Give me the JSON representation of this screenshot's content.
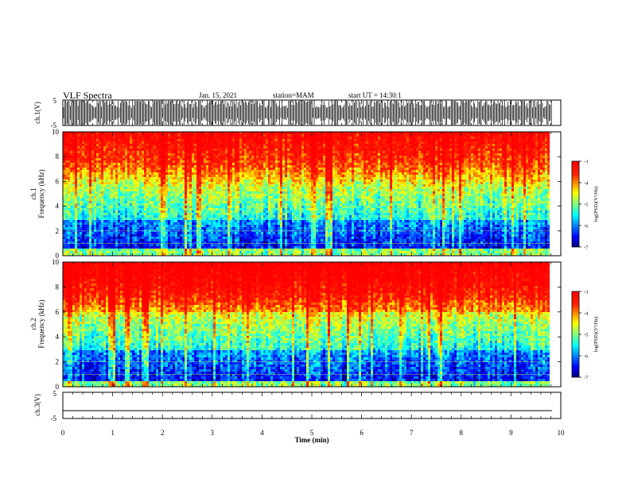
{
  "header": {
    "title": "VLF Spectra",
    "date": "Jan. 15, 2021",
    "station": "station=MAM",
    "start_ut": "start  UT =   14:30:1"
  },
  "chart_data": [
    {
      "type": "line",
      "panel": "ch1-waveform",
      "ylabel": "ch.1(V)",
      "ylim": [
        -5,
        5
      ],
      "yticks": [
        "5",
        "-5"
      ],
      "description_values": {
        "amplitude_v": 5
      }
    },
    {
      "type": "heatmap",
      "panel": "ch1-spectrogram",
      "ylabel_line1": "ch.1",
      "ylabel_line2": "Frequency (kHz)",
      "ylim": [
        0,
        10
      ],
      "yticks": [
        "0",
        "2",
        "4",
        "6",
        "8",
        "10"
      ],
      "colorbar": {
        "label": "log(PSD)(V²/Hz)",
        "range": [
          -7,
          -3
        ],
        "ticks": [
          "-3",
          "-4",
          "-5",
          "-6",
          "-7"
        ],
        "colors": [
          "#00007f",
          "#0000ff",
          "#007fff",
          "#00ffff",
          "#7fff7f",
          "#ffff00",
          "#ff7f00",
          "#ff0000",
          "#7f0000"
        ]
      }
    },
    {
      "type": "heatmap",
      "panel": "ch2-spectrogram",
      "ylabel_line1": "ch.2",
      "ylabel_line2": "Frequency (kHz)",
      "ylim": [
        0,
        10
      ],
      "yticks": [
        "0",
        "2",
        "4",
        "6",
        "8",
        "10"
      ],
      "colorbar": {
        "label": "log(PSD)(V²/Hz)",
        "range": [
          -7,
          -3
        ],
        "ticks": [
          "-3",
          "-4",
          "-5",
          "-6",
          "-7"
        ]
      }
    },
    {
      "type": "line",
      "panel": "ch3-waveform",
      "ylabel": "ch.3(V)",
      "ylim": [
        -5,
        5
      ],
      "yticks": [
        "5",
        "-5"
      ],
      "flat_value": -2
    }
  ],
  "xaxis": {
    "label": "Time (min)",
    "range": [
      0,
      10
    ],
    "ticks": [
      "0",
      "1",
      "2",
      "3",
      "4",
      "5",
      "6",
      "7",
      "8",
      "9",
      "10"
    ],
    "data_end": 9.82
  }
}
